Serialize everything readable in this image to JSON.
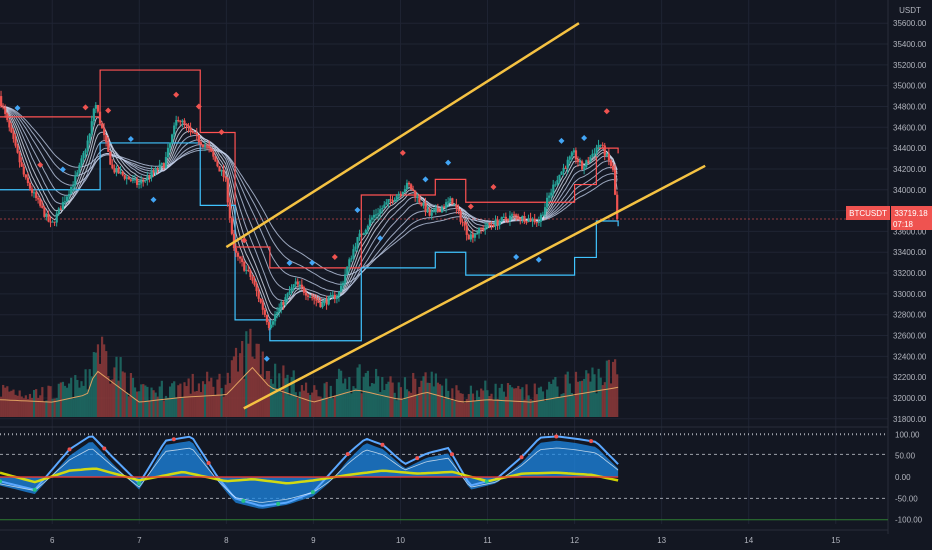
{
  "header": {
    "currency": "USDT"
  },
  "price_tag": {
    "symbol": "BTCUSDT",
    "price": "33719.18",
    "countdown": "07:18"
  },
  "colors": {
    "background": "#131722",
    "grid": "#1f2433",
    "bull": "#26a69a",
    "bear": "#ef5350",
    "channel": "#f5c242",
    "ribbon": "#c8d6f0",
    "stop_line": "#ff5252",
    "stop_line_low": "#40c4ff",
    "osc_wave": "#1e88e5",
    "osc_wave2": "#5ba8ff",
    "osc_money_flow": "#e6e600",
    "osc_level": "#c0c4cc"
  },
  "chart_data": [
    {
      "type": "candlestick",
      "pair": "BTCUSDT",
      "quote_currency": "USDT",
      "x_axis": {
        "ticks": [
          "6",
          "7",
          "8",
          "9",
          "10",
          "11",
          "12",
          "13",
          "14",
          "15"
        ],
        "range": [
          5.4,
          15.6
        ]
      },
      "y_axis": {
        "scale": "linear",
        "range": [
          31750,
          35650
        ],
        "ticks": [
          "35600.00",
          "35400.00",
          "35200.00",
          "35000.00",
          "34800.00",
          "34600.00",
          "34400.00",
          "34200.00",
          "34000.00",
          "33800.00",
          "33600.00",
          "33400.00",
          "33200.00",
          "33000.00",
          "32800.00",
          "32600.00",
          "32400.00",
          "32200.00",
          "32000.00",
          "31800.00"
        ]
      },
      "last_price": 33719.18,
      "price_path": {
        "x": [
          5.4,
          5.7,
          6.0,
          6.3,
          6.45,
          6.5,
          6.7,
          7.0,
          7.3,
          7.45,
          7.6,
          7.8,
          8.0,
          8.1,
          8.3,
          8.5,
          8.8,
          9.1,
          9.3,
          9.5,
          9.7,
          9.9,
          10.1,
          10.35,
          10.6,
          10.8,
          11.0,
          11.3,
          11.6,
          11.8,
          12.0,
          12.1,
          12.3,
          12.45,
          12.5
        ],
        "y": [
          34900,
          34100,
          33650,
          34150,
          34550,
          34850,
          34200,
          34050,
          34250,
          34700,
          34550,
          34400,
          34100,
          33400,
          33150,
          32700,
          33100,
          32900,
          33000,
          33500,
          33750,
          33900,
          34050,
          33750,
          33900,
          33550,
          33650,
          33750,
          33700,
          34100,
          34350,
          34200,
          34450,
          34200,
          33720
        ]
      },
      "channel": {
        "upper": {
          "x": [
            8.0,
            12.05
          ],
          "y": [
            33450,
            35600
          ]
        },
        "lower": {
          "x": [
            8.2,
            13.5
          ],
          "y": [
            31900,
            34230
          ]
        }
      },
      "stop_line": {
        "x": [
          5.4,
          6.4,
          6.55,
          7.45,
          7.7,
          8.0,
          8.1,
          8.5,
          9.3,
          9.55,
          10.4,
          10.75,
          11.7,
          12.0,
          12.25,
          12.5
        ],
        "y": [
          34700,
          34700,
          35150,
          35150,
          34550,
          34550,
          33450,
          33250,
          33250,
          33950,
          34100,
          33880,
          33880,
          34050,
          34400,
          34350
        ]
      },
      "volume": {
        "x": [
          5.4,
          6.0,
          6.4,
          6.5,
          7.0,
          7.5,
          8.0,
          8.3,
          8.5,
          9.0,
          9.5,
          10.0,
          10.3,
          10.7,
          11.0,
          11.5,
          12.0,
          12.5
        ],
        "y": [
          0.35,
          0.3,
          0.45,
          0.95,
          0.3,
          0.4,
          0.45,
          1.0,
          0.6,
          0.3,
          0.55,
          0.35,
          0.5,
          0.3,
          0.35,
          0.3,
          0.45,
          0.6
        ]
      }
    },
    {
      "type": "line",
      "indicator": "oscillator",
      "y_axis": {
        "range": [
          -110,
          110
        ],
        "ticks": [
          "100.00",
          "50.00",
          "0.00",
          "-50.00",
          "-100.00"
        ]
      },
      "levels": [
        100,
        53,
        -50
      ],
      "series": [
        {
          "role": "wave_fill",
          "x": [
            5.4,
            5.8,
            6.2,
            6.45,
            6.7,
            7.0,
            7.3,
            7.6,
            7.9,
            8.1,
            8.4,
            8.7,
            9.0,
            9.2,
            9.4,
            9.6,
            9.8,
            10.05,
            10.3,
            10.55,
            10.8,
            11.1,
            11.4,
            11.6,
            11.8,
            12.0,
            12.25,
            12.5
          ],
          "y": [
            -20,
            -40,
            50,
            85,
            30,
            -30,
            75,
            85,
            -10,
            -60,
            -75,
            -65,
            -45,
            -10,
            40,
            80,
            65,
            20,
            45,
            55,
            -30,
            -15,
            35,
            80,
            85,
            80,
            70,
            20
          ]
        },
        {
          "role": "wave_line",
          "x": [
            5.4,
            5.8,
            6.2,
            6.45,
            6.7,
            7.0,
            7.3,
            7.6,
            7.9,
            8.1,
            8.4,
            8.7,
            9.0,
            9.2,
            9.4,
            9.6,
            9.8,
            10.05,
            10.3,
            10.55,
            10.8,
            11.1,
            11.4,
            11.6,
            11.8,
            12.0,
            12.25,
            12.5
          ],
          "y": [
            -10,
            -30,
            65,
            98,
            45,
            -15,
            85,
            95,
            0,
            -50,
            -68,
            -60,
            -35,
            10,
            55,
            90,
            75,
            30,
            55,
            68,
            -20,
            -5,
            48,
            92,
            95,
            90,
            82,
            30
          ]
        },
        {
          "role": "money_flow",
          "x": [
            5.4,
            5.8,
            6.2,
            6.5,
            7.0,
            7.5,
            8.0,
            8.3,
            8.7,
            9.0,
            9.4,
            9.8,
            10.2,
            10.6,
            11.0,
            11.4,
            11.8,
            12.2,
            12.5
          ],
          "y": [
            10,
            -12,
            15,
            20,
            -8,
            12,
            -10,
            -5,
            -15,
            -8,
            5,
            15,
            8,
            12,
            -10,
            8,
            10,
            5,
            -8
          ]
        }
      ]
    }
  ]
}
